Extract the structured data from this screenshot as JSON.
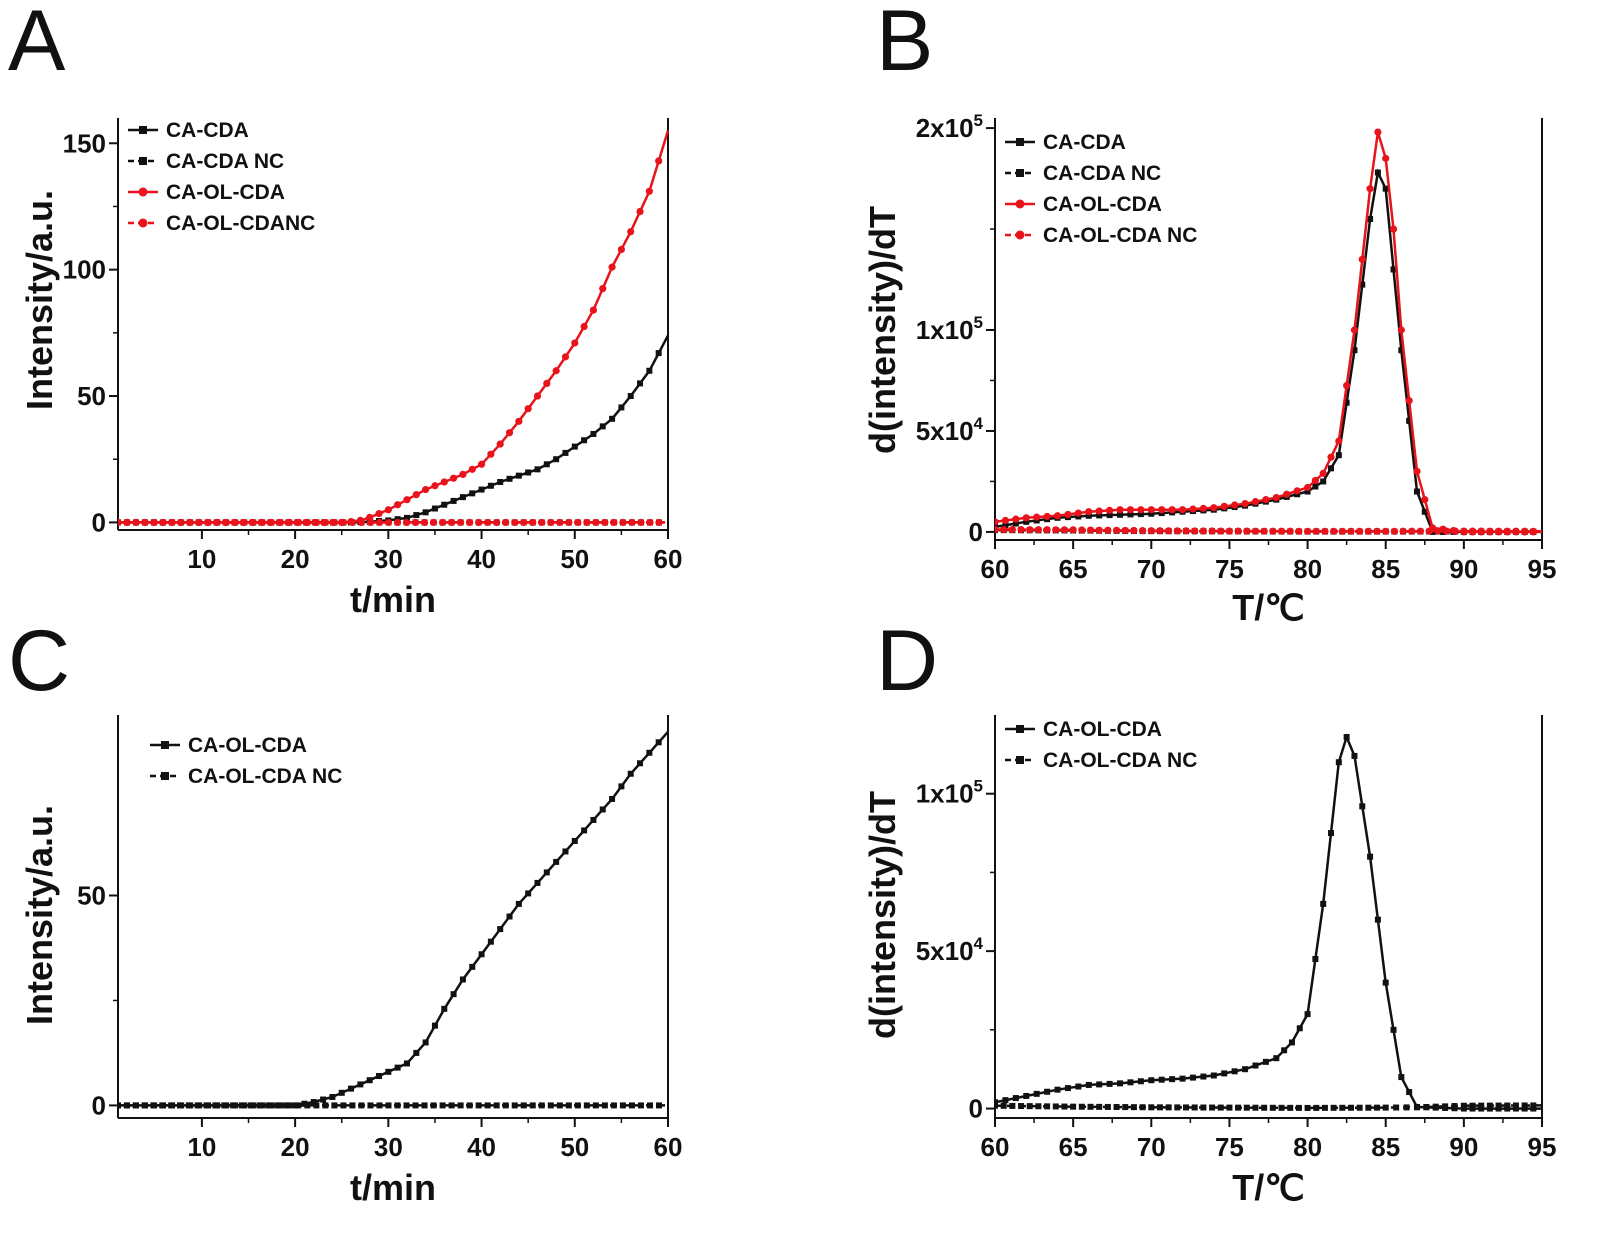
{
  "chart_data": [
    {
      "panel": "A",
      "type": "line",
      "xlabel": "t/min",
      "ylabel": "Intensity/a.u.",
      "xlim": [
        1,
        60
      ],
      "ylim": [
        -3,
        160
      ],
      "xticks": [
        10,
        20,
        30,
        40,
        50,
        60
      ],
      "yticks": [
        0,
        50,
        100,
        150
      ],
      "ytick_labels": [
        "0",
        "50",
        "100",
        "150"
      ],
      "series": [
        {
          "name": "CA-CDA",
          "color": "#111111",
          "dash": false,
          "marker": "square",
          "x": [
            1,
            26,
            28,
            30,
            32,
            34,
            36,
            38,
            40,
            42,
            44,
            46,
            48,
            50,
            52,
            54,
            56,
            58,
            60
          ],
          "y": [
            0,
            0,
            0.3,
            0.8,
            1.8,
            4,
            7,
            10,
            13,
            16,
            18.5,
            21,
            25,
            30,
            35,
            41,
            50,
            60,
            74
          ]
        },
        {
          "name": "CA-CDA NC",
          "color": "#111111",
          "dash": true,
          "marker": "square",
          "x": [
            1,
            60
          ],
          "y": [
            0,
            0
          ]
        },
        {
          "name": "CA-OL-CDA",
          "color": "#e8131b",
          "dash": false,
          "marker": "circle",
          "x": [
            1,
            25,
            26,
            27,
            28,
            30,
            32,
            34,
            36,
            38,
            40,
            42,
            44,
            46,
            48,
            50,
            52,
            54,
            56,
            58,
            60
          ],
          "y": [
            0,
            0,
            0.3,
            0.8,
            2,
            5,
            9,
            13,
            16,
            19,
            23,
            31,
            40,
            50,
            60,
            71,
            84,
            101,
            115,
            131,
            155
          ]
        },
        {
          "name": "CA-OL-CDANC",
          "color": "#e8131b",
          "dash": true,
          "marker": "circle",
          "x": [
            1,
            60
          ],
          "y": [
            0,
            0
          ]
        }
      ]
    },
    {
      "panel": "B",
      "type": "line",
      "xlabel": "T/℃",
      "ylabel": "d(intensity)/dT",
      "xlim": [
        60,
        95
      ],
      "ylim": [
        -4000,
        205000
      ],
      "xticks": [
        60,
        65,
        70,
        75,
        80,
        85,
        90,
        95
      ],
      "yticks": [
        0,
        50000,
        100000,
        200000
      ],
      "ytick_labels": [
        "0",
        "5x10^4",
        "1x10^5",
        "2x10^5"
      ],
      "series": [
        {
          "name": "CA-CDA",
          "color": "#111111",
          "dash": false,
          "marker": "square",
          "x": [
            60,
            62,
            64,
            66,
            68,
            70,
            72,
            74,
            76,
            78,
            80,
            81,
            82,
            83,
            84,
            84.5,
            85,
            86,
            87,
            88,
            90,
            95
          ],
          "y": [
            2500,
            5000,
            7000,
            8000,
            8500,
            9000,
            10000,
            11000,
            13000,
            16000,
            20000,
            25000,
            38000,
            90000,
            155000,
            178000,
            170000,
            90000,
            20000,
            0,
            0,
            0
          ]
        },
        {
          "name": "CA-CDA NC",
          "color": "#111111",
          "dash": true,
          "marker": "square",
          "x": [
            60,
            65,
            70,
            75,
            80,
            85,
            90,
            95
          ],
          "y": [
            900,
            700,
            400,
            300,
            200,
            200,
            200,
            200
          ]
        },
        {
          "name": "CA-OL-CDA",
          "color": "#e8131b",
          "dash": false,
          "marker": "circle",
          "x": [
            60,
            62,
            64,
            66,
            68,
            70,
            72,
            74,
            76,
            78,
            80,
            81,
            82,
            83,
            84,
            84.5,
            85,
            85.5,
            86,
            87,
            88,
            90,
            95
          ],
          "y": [
            5000,
            7000,
            8000,
            10000,
            11000,
            11000,
            11000,
            12000,
            14000,
            17000,
            22000,
            29000,
            45000,
            100000,
            170000,
            198000,
            185000,
            150000,
            100000,
            30000,
            2000,
            0,
            0
          ]
        },
        {
          "name": "CA-OL-CDA NC",
          "color": "#e8131b",
          "dash": true,
          "marker": "circle",
          "x": [
            60,
            65,
            70,
            75,
            80,
            85,
            90,
            95
          ],
          "y": [
            1200,
            1000,
            600,
            400,
            300,
            300,
            400,
            300
          ]
        }
      ]
    },
    {
      "panel": "C",
      "type": "line",
      "xlabel": "t/min",
      "ylabel": "Intensity/a.u.",
      "xlim": [
        1,
        60
      ],
      "ylim": [
        -3,
        93
      ],
      "xticks": [
        10,
        20,
        30,
        40,
        50,
        60
      ],
      "yticks": [
        0,
        50
      ],
      "ytick_labels": [
        "0",
        "50"
      ],
      "series": [
        {
          "name": "CA-OL-CDA",
          "color": "#111111",
          "dash": false,
          "marker": "square",
          "x": [
            1,
            20,
            22,
            24,
            26,
            28,
            30,
            32,
            34,
            36,
            38,
            40,
            42,
            44,
            46,
            48,
            50,
            52,
            54,
            56,
            58,
            60
          ],
          "y": [
            0,
            0,
            0.8,
            2,
            4,
            6,
            8,
            10,
            15,
            23,
            30,
            36,
            42,
            48,
            53,
            58,
            63,
            68,
            73,
            79,
            84,
            89
          ]
        },
        {
          "name": "CA-OL-CDA NC",
          "color": "#111111",
          "dash": true,
          "marker": "square",
          "x": [
            1,
            60
          ],
          "y": [
            0,
            0
          ]
        }
      ]
    },
    {
      "panel": "D",
      "type": "line",
      "xlabel": "T/℃",
      "ylabel": "d(intensity)/dT",
      "xlim": [
        60,
        95
      ],
      "ylim": [
        -3000,
        125000
      ],
      "xticks": [
        60,
        65,
        70,
        75,
        80,
        85,
        90,
        95
      ],
      "yticks": [
        0,
        50000,
        100000
      ],
      "ytick_labels": [
        "0",
        "5x10^4",
        "1x10^5"
      ],
      "series": [
        {
          "name": "CA-OL-CDA",
          "color": "#111111",
          "dash": false,
          "marker": "square",
          "x": [
            60,
            62,
            64,
            66,
            68,
            70,
            72,
            74,
            76,
            78,
            79,
            80,
            81,
            82,
            82.5,
            83,
            84,
            85,
            86,
            87,
            90,
            95
          ],
          "y": [
            2000,
            4000,
            6000,
            7500,
            8000,
            9000,
            9500,
            10500,
            12500,
            16000,
            21000,
            30000,
            65000,
            110000,
            118000,
            112000,
            80000,
            40000,
            10000,
            500,
            0,
            0
          ]
        },
        {
          "name": "CA-OL-CDA NC",
          "color": "#111111",
          "dash": true,
          "marker": "square",
          "x": [
            60,
            65,
            70,
            75,
            80,
            85,
            87,
            90,
            95
          ],
          "y": [
            900,
            600,
            400,
            300,
            200,
            300,
            400,
            900,
            1000
          ]
        }
      ]
    }
  ]
}
